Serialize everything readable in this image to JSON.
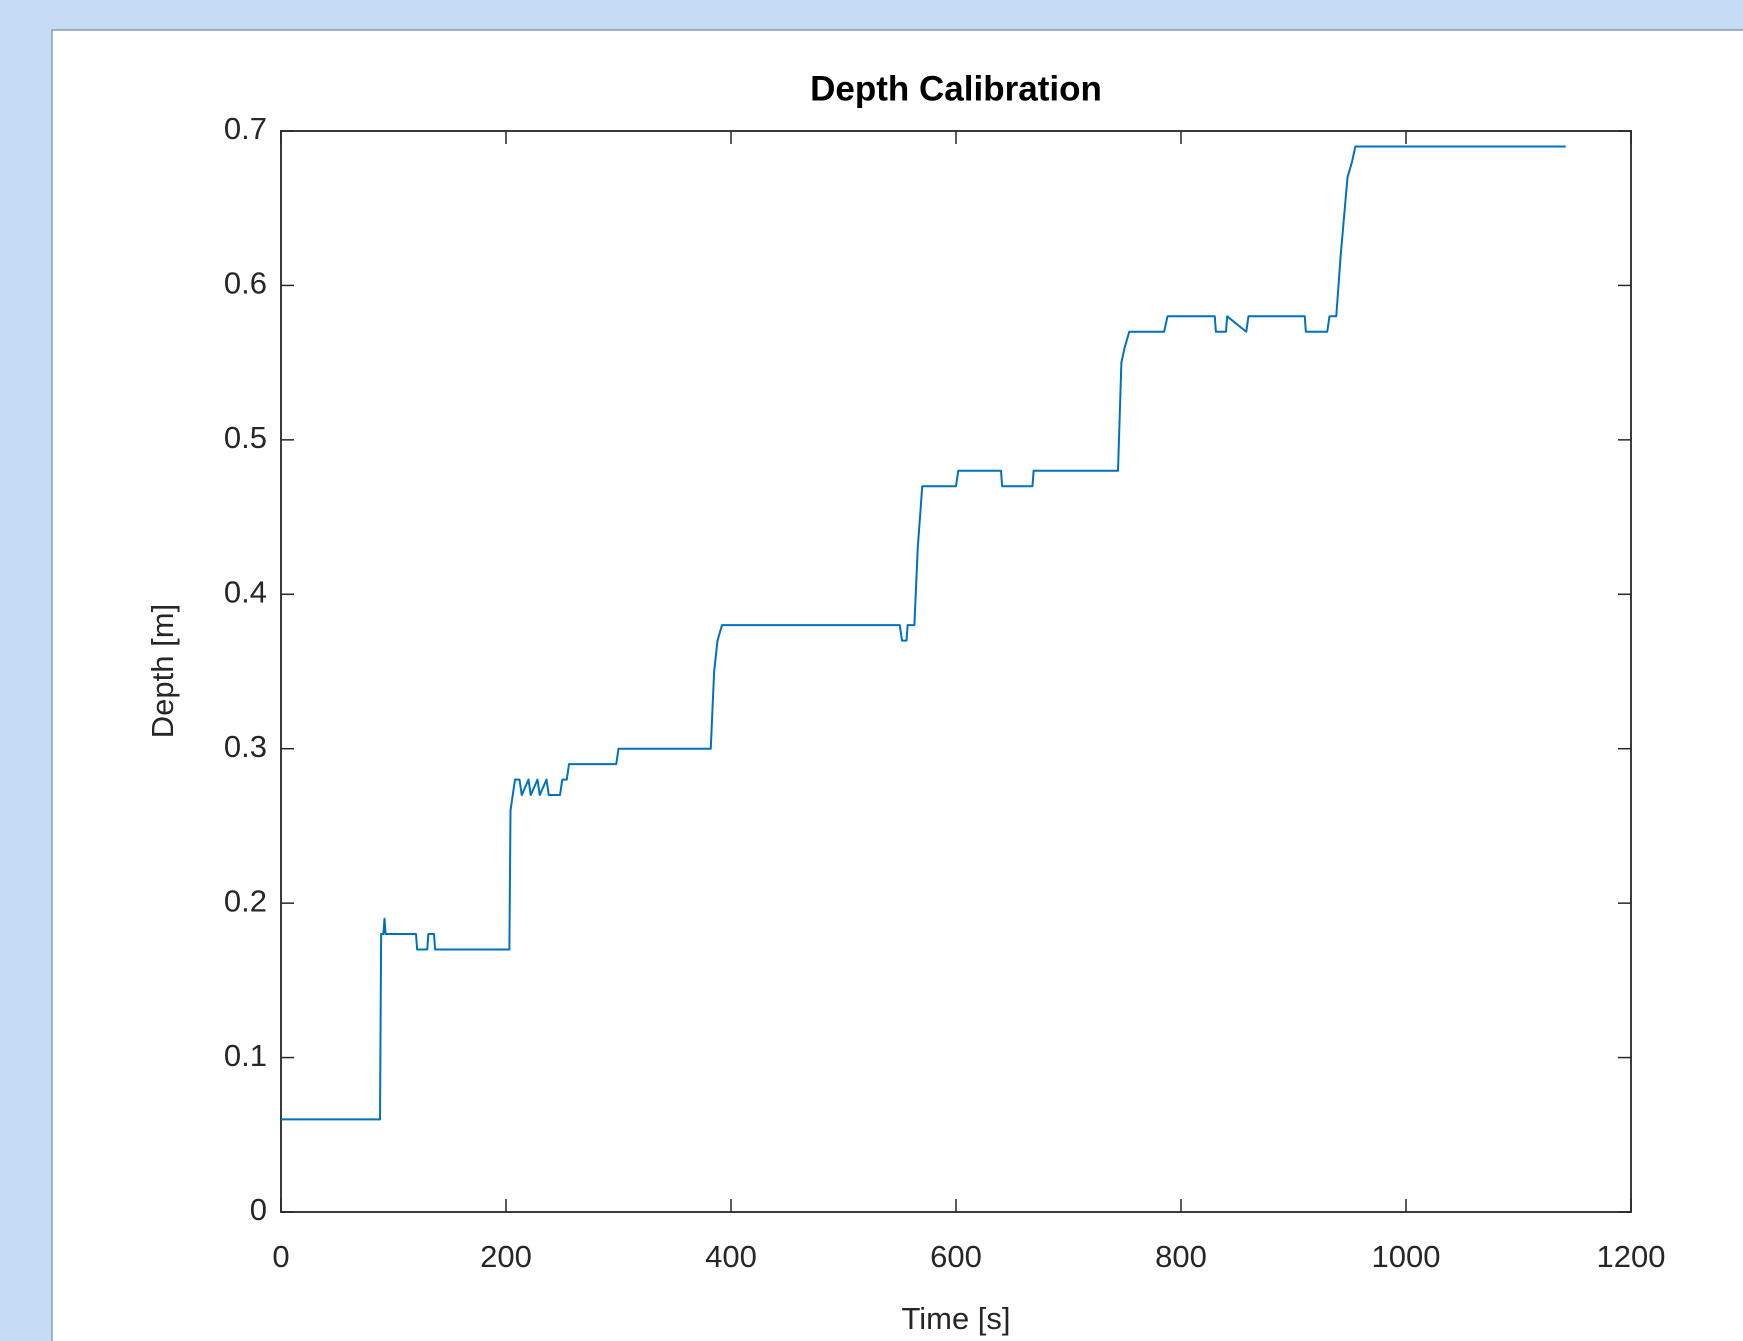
{
  "chart_data": {
    "type": "line",
    "title": "Depth Calibration",
    "xlabel": "Time [s]",
    "ylabel": "Depth [m]",
    "x": [
      0,
      88,
      89,
      91,
      92,
      93,
      120,
      121,
      130,
      131,
      136,
      137,
      203,
      204,
      206,
      208,
      212,
      214,
      220,
      222,
      228,
      230,
      236,
      238,
      248,
      250,
      254,
      256,
      298,
      300,
      382,
      385,
      388,
      392,
      550,
      552,
      556,
      557,
      563,
      566,
      570,
      600,
      602,
      640,
      641,
      668,
      669,
      744,
      747,
      750,
      754,
      785,
      788,
      830,
      831,
      840,
      841,
      858,
      860,
      910,
      911,
      930,
      932,
      938,
      942,
      948,
      952,
      955,
      1142
    ],
    "series": [
      {
        "name": "Depth",
        "color": "#0072bd",
        "values": [
          0.06,
          0.06,
          0.18,
          0.18,
          0.19,
          0.18,
          0.18,
          0.17,
          0.17,
          0.18,
          0.18,
          0.17,
          0.17,
          0.26,
          0.27,
          0.28,
          0.28,
          0.27,
          0.28,
          0.27,
          0.28,
          0.27,
          0.28,
          0.27,
          0.27,
          0.28,
          0.28,
          0.29,
          0.29,
          0.3,
          0.3,
          0.35,
          0.37,
          0.38,
          0.38,
          0.37,
          0.37,
          0.38,
          0.38,
          0.43,
          0.47,
          0.47,
          0.48,
          0.48,
          0.47,
          0.47,
          0.48,
          0.48,
          0.55,
          0.56,
          0.57,
          0.57,
          0.58,
          0.58,
          0.57,
          0.57,
          0.58,
          0.57,
          0.58,
          0.58,
          0.57,
          0.57,
          0.58,
          0.58,
          0.62,
          0.67,
          0.68,
          0.69,
          0.69
        ]
      }
    ],
    "xlim": [
      0,
      1200
    ],
    "xticks": [
      0,
      200,
      400,
      600,
      800,
      1000,
      1200
    ],
    "ylim": [
      0,
      0.7
    ],
    "yticks": [
      0,
      0.1,
      0.2,
      0.3,
      0.4,
      0.5,
      0.6,
      0.7
    ],
    "grid": false
  }
}
